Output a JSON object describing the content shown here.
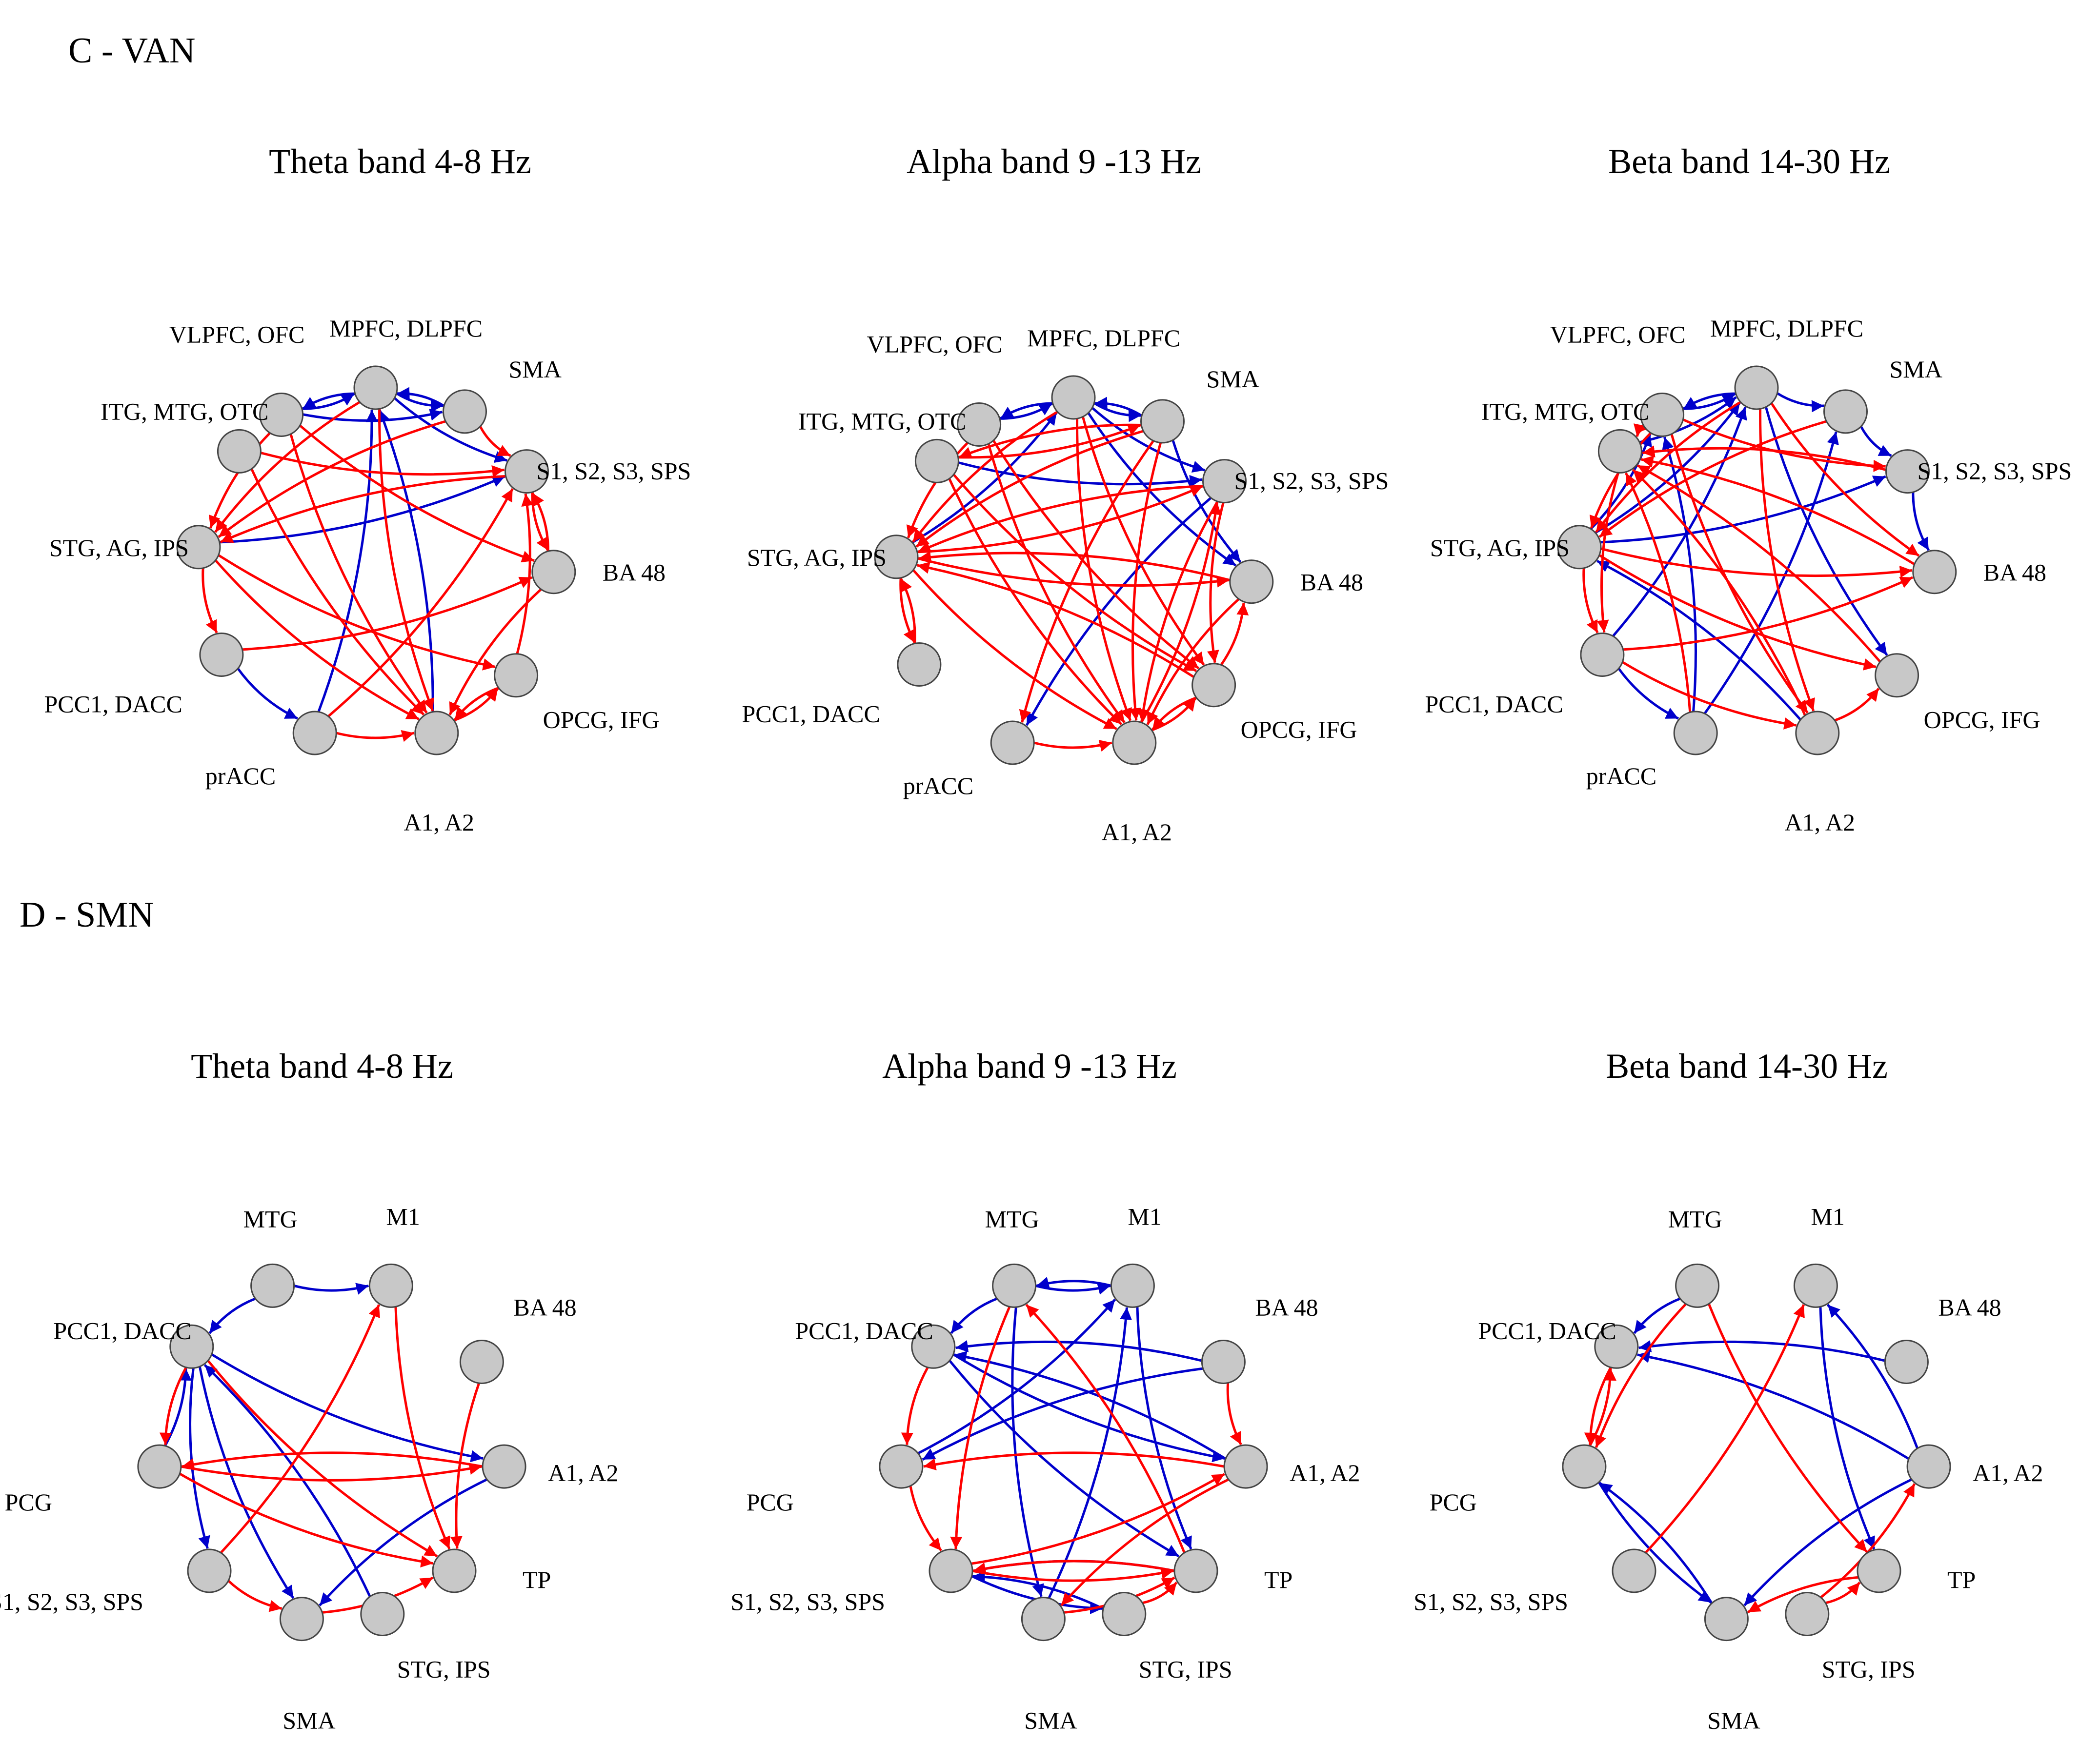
{
  "figure": {
    "colors": {
      "increase": "#ff0000",
      "decrease": "#0000cc",
      "node_fill": "#c8c8c8",
      "node_stroke": "#444444"
    },
    "sections": [
      {
        "label": "C - VAN",
        "network": "VAN",
        "nodes": [
          "VLPFC, OFC",
          "MPFC, DLPFC",
          "SMA",
          "S1, S2, S3, SPS",
          "BA 48",
          "OPCG, IFG",
          "A1, A2",
          "prACC",
          "PCC1, DACC",
          "STG, AG, IPS",
          "ITG, MTG, OTC"
        ],
        "panels": [
          {
            "title": "Theta band 4-8 Hz",
            "edges": [
              [
                "VLPFC, OFC",
                "MPFC, DLPFC",
                "b"
              ],
              [
                "MPFC, DLPFC",
                "VLPFC, OFC",
                "b"
              ],
              [
                "MPFC, DLPFC",
                "SMA",
                "b"
              ],
              [
                "SMA",
                "MPFC, DLPFC",
                "b"
              ],
              [
                "VLPFC, OFC",
                "SMA",
                "b"
              ],
              [
                "MPFC, DLPFC",
                "S1, S2, S3, SPS",
                "b"
              ],
              [
                "STG, AG, IPS",
                "S1, S2, S3, SPS",
                "b"
              ],
              [
                "PCC1, DACC",
                "prACC",
                "b"
              ],
              [
                "A1, A2",
                "MPFC, DLPFC",
                "b"
              ],
              [
                "prACC",
                "MPFC, DLPFC",
                "b"
              ],
              [
                "VLPFC, OFC",
                "STG, AG, IPS",
                "r"
              ],
              [
                "MPFC, DLPFC",
                "STG, AG, IPS",
                "r"
              ],
              [
                "SMA",
                "STG, AG, IPS",
                "r"
              ],
              [
                "S1, S2, S3, SPS",
                "STG, AG, IPS",
                "r"
              ],
              [
                "ITG, MTG, OTC",
                "S1, S2, S3, SPS",
                "r"
              ],
              [
                "VLPFC, OFC",
                "BA 48",
                "r"
              ],
              [
                "SMA",
                "S1, S2, S3, SPS",
                "r"
              ],
              [
                "STG, AG, IPS",
                "PCC1, DACC",
                "r"
              ],
              [
                "STG, AG, IPS",
                "A1, A2",
                "r"
              ],
              [
                "ITG, MTG, OTC",
                "A1, A2",
                "r"
              ],
              [
                "VLPFC, OFC",
                "A1, A2",
                "r"
              ],
              [
                "MPFC, DLPFC",
                "A1, A2",
                "r"
              ],
              [
                "PCC1, DACC",
                "BA 48",
                "r"
              ],
              [
                "prACC",
                "S1, S2, S3, SPS",
                "r"
              ],
              [
                "BA 48",
                "A1, A2",
                "r"
              ],
              [
                "A1, A2",
                "OPCG, IFG",
                "r"
              ],
              [
                "OPCG, IFG",
                "A1, A2",
                "r"
              ],
              [
                "OPCG, IFG",
                "S1, S2, S3, SPS",
                "r"
              ],
              [
                "S1, S2, S3, SPS",
                "BA 48",
                "r"
              ],
              [
                "BA 48",
                "S1, S2, S3, SPS",
                "r"
              ],
              [
                "prACC",
                "A1, A2",
                "r"
              ],
              [
                "STG, AG, IPS",
                "OPCG, IFG",
                "r"
              ]
            ]
          },
          {
            "title": "Alpha band 9 -13 Hz",
            "edges": [
              [
                "VLPFC, OFC",
                "MPFC, DLPFC",
                "b"
              ],
              [
                "MPFC, DLPFC",
                "VLPFC, OFC",
                "b"
              ],
              [
                "MPFC, DLPFC",
                "SMA",
                "b"
              ],
              [
                "SMA",
                "MPFC, DLPFC",
                "b"
              ],
              [
                "MPFC, DLPFC",
                "S1, S2, S3, SPS",
                "b"
              ],
              [
                "ITG, MTG, OTC",
                "S1, S2, S3, SPS",
                "b"
              ],
              [
                "S1, S2, S3, SPS",
                "prACC",
                "b"
              ],
              [
                "STG, AG, IPS",
                "MPFC, DLPFC",
                "b"
              ],
              [
                "MPFC, DLPFC",
                "BA 48",
                "b"
              ],
              [
                "SMA",
                "BA 48",
                "b"
              ],
              [
                "PCC1, DACC",
                "STG, AG, IPS",
                "r"
              ],
              [
                "STG, AG, IPS",
                "PCC1, DACC",
                "r"
              ],
              [
                "VLPFC, OFC",
                "STG, AG, IPS",
                "r"
              ],
              [
                "MPFC, DLPFC",
                "STG, AG, IPS",
                "r"
              ],
              [
                "SMA",
                "STG, AG, IPS",
                "r"
              ],
              [
                "S1, S2, S3, SPS",
                "STG, AG, IPS",
                "r"
              ],
              [
                "BA 48",
                "STG, AG, IPS",
                "r"
              ],
              [
                "OPCG, IFG",
                "STG, AG, IPS",
                "r"
              ],
              [
                "SMA",
                "ITG, MTG, OTC",
                "r"
              ],
              [
                "ITG, MTG, OTC",
                "A1, A2",
                "r"
              ],
              [
                "ITG, MTG, OTC",
                "OPCG, IFG",
                "r"
              ],
              [
                "STG, AG, IPS",
                "A1, A2",
                "r"
              ],
              [
                "STG, AG, IPS",
                "BA 48",
                "r"
              ],
              [
                "VLPFC, OFC",
                "A1, A2",
                "r"
              ],
              [
                "VLPFC, OFC",
                "OPCG, IFG",
                "r"
              ],
              [
                "MPFC, DLPFC",
                "A1, A2",
                "r"
              ],
              [
                "MPFC, DLPFC",
                "OPCG, IFG",
                "r"
              ],
              [
                "SMA",
                "prACC",
                "r"
              ],
              [
                "SMA",
                "A1, A2",
                "r"
              ],
              [
                "S1, S2, S3, SPS",
                "A1, A2",
                "r"
              ],
              [
                "S1, S2, S3, SPS",
                "OPCG, IFG",
                "r"
              ],
              [
                "BA 48",
                "A1, A2",
                "r"
              ],
              [
                "A1, A2",
                "OPCG, IFG",
                "r"
              ],
              [
                "OPCG, IFG",
                "A1, A2",
                "r"
              ],
              [
                "prACC",
                "A1, A2",
                "r"
              ],
              [
                "OPCG, IFG",
                "BA 48",
                "r"
              ],
              [
                "STG, AG, IPS",
                "S1, S2, S3, SPS",
                "r"
              ],
              [
                "ITG, MTG, OTC",
                "SMA",
                "r"
              ],
              [
                "A1, A2",
                "S1, S2, S3, SPS",
                "r"
              ]
            ]
          },
          {
            "title": "Beta band 14-30 Hz",
            "edges": [
              [
                "VLPFC, OFC",
                "MPFC, DLPFC",
                "b"
              ],
              [
                "MPFC, DLPFC",
                "VLPFC, OFC",
                "b"
              ],
              [
                "MPFC, DLPFC",
                "SMA",
                "b"
              ],
              [
                "SMA",
                "S1, S2, S3, SPS",
                "b"
              ],
              [
                "S1, S2, S3, SPS",
                "BA 48",
                "b"
              ],
              [
                "STG, AG, IPS",
                "VLPFC, OFC",
                "b"
              ],
              [
                "STG, AG, IPS",
                "MPFC, DLPFC",
                "b"
              ],
              [
                "ITG, MTG, OTC",
                "MPFC, DLPFC",
                "b"
              ],
              [
                "PCC1, DACC",
                "MPFC, DLPFC",
                "b"
              ],
              [
                "prACC",
                "SMA",
                "b"
              ],
              [
                "MPFC, DLPFC",
                "OPCG, IFG",
                "b"
              ],
              [
                "STG, AG, IPS",
                "S1, S2, S3, SPS",
                "b"
              ],
              [
                "PCC1, DACC",
                "prACC",
                "b"
              ],
              [
                "A1, A2",
                "STG, AG, IPS",
                "b"
              ],
              [
                "prACC",
                "VLPFC, OFC",
                "b"
              ],
              [
                "VLPFC, OFC",
                "ITG, MTG, OTC",
                "r"
              ],
              [
                "VLPFC, OFC",
                "STG, AG, IPS",
                "r"
              ],
              [
                "MPFC, DLPFC",
                "STG, AG, IPS",
                "r"
              ],
              [
                "SMA",
                "STG, AG, IPS",
                "r"
              ],
              [
                "S1, S2, S3, SPS",
                "ITG, MTG, OTC",
                "r"
              ],
              [
                "BA 48",
                "ITG, MTG, OTC",
                "r"
              ],
              [
                "OPCG, IFG",
                "ITG, MTG, OTC",
                "r"
              ],
              [
                "A1, A2",
                "ITG, MTG, OTC",
                "r"
              ],
              [
                "ITG, MTG, OTC",
                "PCC1, DACC",
                "r"
              ],
              [
                "STG, AG, IPS",
                "PCC1, DACC",
                "r"
              ],
              [
                "STG, AG, IPS",
                "BA 48",
                "r"
              ],
              [
                "VLPFC, OFC",
                "S1, S2, S3, SPS",
                "r"
              ],
              [
                "VLPFC, OFC",
                "A1, A2",
                "r"
              ],
              [
                "MPFC, DLPFC",
                "A1, A2",
                "r"
              ],
              [
                "MPFC, DLPFC",
                "BA 48",
                "r"
              ],
              [
                "PCC1, DACC",
                "A1, A2",
                "r"
              ],
              [
                "PCC1, DACC",
                "BA 48",
                "r"
              ],
              [
                "A1, A2",
                "OPCG, IFG",
                "r"
              ],
              [
                "prACC",
                "ITG, MTG, OTC",
                "r"
              ],
              [
                "STG, AG, IPS",
                "OPCG, IFG",
                "r"
              ]
            ]
          }
        ]
      },
      {
        "label": "D - SMN",
        "network": "SMN",
        "nodes": [
          "MTG",
          "M1",
          "BA 48",
          "A1, A2",
          "TP",
          "STG, IPS",
          "SMA",
          "S1, S2, S3, SPS",
          "PCG",
          "PCC1, DACC"
        ],
        "panels": [
          {
            "title": "Theta band 4-8 Hz",
            "edges": [
              [
                "MTG",
                "M1",
                "b"
              ],
              [
                "MTG",
                "PCC1, DACC",
                "b"
              ],
              [
                "PCC1, DACC",
                "A1, A2",
                "b"
              ],
              [
                "PCC1, DACC",
                "S1, S2, S3, SPS",
                "b"
              ],
              [
                "PCC1, DACC",
                "SMA",
                "b"
              ],
              [
                "PCG",
                "PCC1, DACC",
                "b"
              ],
              [
                "STG, IPS",
                "PCC1, DACC",
                "b"
              ],
              [
                "A1, A2",
                "SMA",
                "b"
              ],
              [
                "M1",
                "TP",
                "r"
              ],
              [
                "BA 48",
                "TP",
                "r"
              ],
              [
                "A1, A2",
                "PCG",
                "r"
              ],
              [
                "PCG",
                "TP",
                "r"
              ],
              [
                "S1, S2, S3, SPS",
                "SMA",
                "r"
              ],
              [
                "SMA",
                "TP",
                "r"
              ],
              [
                "PCC1, DACC",
                "PCG",
                "r"
              ],
              [
                "S1, S2, S3, SPS",
                "M1",
                "r"
              ],
              [
                "PCG",
                "A1, A2",
                "r"
              ],
              [
                "PCC1, DACC",
                "TP",
                "r"
              ]
            ]
          },
          {
            "title": "Alpha band 9 -13 Hz",
            "edges": [
              [
                "MTG",
                "M1",
                "b"
              ],
              [
                "M1",
                "MTG",
                "b"
              ],
              [
                "MTG",
                "PCC1, DACC",
                "b"
              ],
              [
                "PCC1, DACC",
                "A1, A2",
                "b"
              ],
              [
                "PCC1, DACC",
                "TP",
                "b"
              ],
              [
                "BA 48",
                "PCC1, DACC",
                "b"
              ],
              [
                "BA 48",
                "PCG",
                "b"
              ],
              [
                "M1",
                "TP",
                "b"
              ],
              [
                "MTG",
                "SMA",
                "b"
              ],
              [
                "S1, S2, S3, SPS",
                "STG, IPS",
                "b"
              ],
              [
                "STG, IPS",
                "S1, S2, S3, SPS",
                "b"
              ],
              [
                "TP",
                "S1, S2, S3, SPS",
                "b"
              ],
              [
                "SMA",
                "M1",
                "b"
              ],
              [
                "A1, A2",
                "PCC1, DACC",
                "b"
              ],
              [
                "PCG",
                "M1",
                "b"
              ],
              [
                "A1, A2",
                "PCG",
                "r"
              ],
              [
                "PCG",
                "S1, S2, S3, SPS",
                "r"
              ],
              [
                "S1, S2, S3, SPS",
                "TP",
                "r"
              ],
              [
                "TP",
                "S1, S2, S3, SPS",
                "r"
              ],
              [
                "SMA",
                "TP",
                "r"
              ],
              [
                "STG, IPS",
                "TP",
                "r"
              ],
              [
                "A1, A2",
                "SMA",
                "r"
              ],
              [
                "TP",
                "MTG",
                "r"
              ],
              [
                "MTG",
                "S1, S2, S3, SPS",
                "r"
              ],
              [
                "PCC1, DACC",
                "PCG",
                "r"
              ],
              [
                "BA 48",
                "A1, A2",
                "r"
              ],
              [
                "S1, S2, S3, SPS",
                "A1, A2",
                "r"
              ]
            ]
          },
          {
            "title": "Beta band 14-30 Hz",
            "edges": [
              [
                "MTG",
                "PCC1, DACC",
                "b"
              ],
              [
                "BA 48",
                "PCC1, DACC",
                "b"
              ],
              [
                "A1, A2",
                "M1",
                "b"
              ],
              [
                "M1",
                "TP",
                "b"
              ],
              [
                "A1, A2",
                "PCC1, DACC",
                "b"
              ],
              [
                "PCG",
                "SMA",
                "b"
              ],
              [
                "SMA",
                "PCG",
                "b"
              ],
              [
                "A1, A2",
                "SMA",
                "b"
              ],
              [
                "MTG",
                "PCG",
                "r"
              ],
              [
                "PCC1, DACC",
                "PCG",
                "r"
              ],
              [
                "MTG",
                "TP",
                "r"
              ],
              [
                "S1, S2, S3, SPS",
                "M1",
                "r"
              ],
              [
                "TP",
                "SMA",
                "r"
              ],
              [
                "STG, IPS",
                "TP",
                "r"
              ],
              [
                "STG, IPS",
                "A1, A2",
                "r"
              ],
              [
                "PCG",
                "PCC1, DACC",
                "r"
              ]
            ]
          }
        ]
      }
    ]
  }
}
